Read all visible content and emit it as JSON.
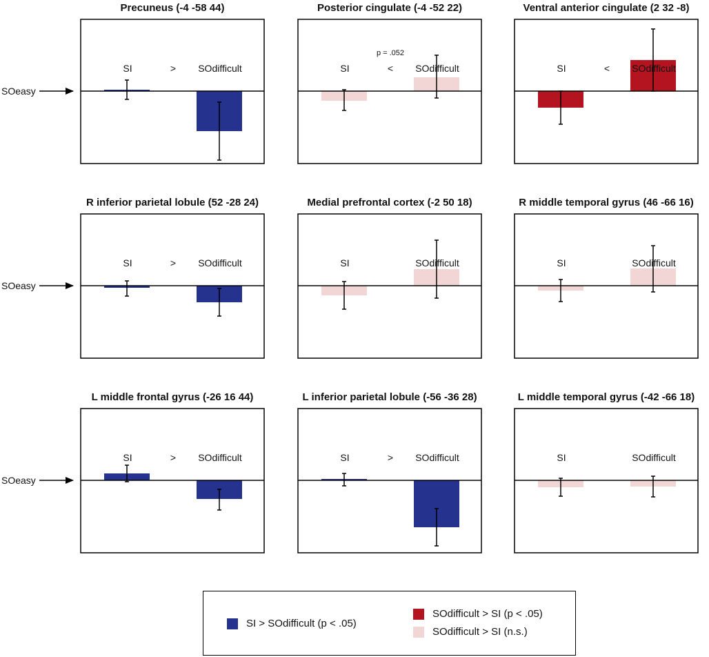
{
  "colors": {
    "sig_less": "#25338f",
    "sig_greater": "#b3141f",
    "ns": "#f2d6d6"
  },
  "row_label": "SOeasy",
  "legend": {
    "items": [
      {
        "label": "SI > SOdifficult (p < .05)",
        "color": "#25338f"
      },
      {
        "label": "SOdifficult > SI (p < .05)",
        "color": "#b3141f"
      },
      {
        "label": "SOdifficult > SI (n.s.)",
        "color": "#f2d6d6"
      }
    ]
  },
  "chart_data": [
    {
      "type": "bar",
      "title": "Precuneus (-4 -58 44)",
      "categories": [
        "SI",
        "SOdifficult"
      ],
      "comparison": ">",
      "annotation": "",
      "values": [
        0.02,
        -0.58
      ],
      "error_low": [
        -0.12,
        -1.0
      ],
      "error_high": [
        0.16,
        -0.16
      ],
      "colors": [
        "sig_less",
        "sig_less"
      ],
      "ylim": [
        -1.05,
        1.0
      ]
    },
    {
      "type": "bar",
      "title": "Posterior cingulate (-4 -52 22)",
      "categories": [
        "SI",
        "SOdifficult"
      ],
      "comparison": "<",
      "annotation": "p = .052",
      "values": [
        -0.14,
        0.2
      ],
      "error_low": [
        -0.28,
        -0.1
      ],
      "error_high": [
        0.02,
        0.52
      ],
      "colors": [
        "ns",
        "ns"
      ],
      "ylim": [
        -1.05,
        1.0
      ]
    },
    {
      "type": "bar",
      "title": "Ventral anterior cingulate (2 32 -8)",
      "categories": [
        "SI",
        "SOdifficult"
      ],
      "comparison": "<",
      "annotation": "",
      "values": [
        -0.24,
        0.45
      ],
      "error_low": [
        -0.48,
        0.0
      ],
      "error_high": [
        0.0,
        0.9
      ],
      "colors": [
        "sig_greater",
        "sig_greater"
      ],
      "ylim": [
        -1.05,
        1.0
      ]
    },
    {
      "type": "bar",
      "title": "R inferior parietal lobule (52 -28 24)",
      "categories": [
        "SI",
        "SOdifficult"
      ],
      "comparison": ">",
      "annotation": "",
      "values": [
        -0.03,
        -0.24
      ],
      "error_low": [
        -0.15,
        -0.44
      ],
      "error_high": [
        0.07,
        -0.04
      ],
      "colors": [
        "sig_less",
        "sig_less"
      ],
      "ylim": [
        -1.05,
        1.0
      ]
    },
    {
      "type": "bar",
      "title": "Medial prefrontal cortex (-2 50 18)",
      "categories": [
        "SI",
        "SOdifficult"
      ],
      "comparison": "",
      "annotation": "",
      "values": [
        -0.14,
        0.24
      ],
      "error_low": [
        -0.34,
        -0.18
      ],
      "error_high": [
        0.06,
        0.66
      ],
      "colors": [
        "ns",
        "ns"
      ],
      "ylim": [
        -1.05,
        1.0
      ]
    },
    {
      "type": "bar",
      "title": "R middle temporal gyrus (46 -66 16)",
      "categories": [
        "SI",
        "SOdifficult"
      ],
      "comparison": "",
      "annotation": "",
      "values": [
        -0.07,
        0.25
      ],
      "error_low": [
        -0.23,
        -0.09
      ],
      "error_high": [
        0.09,
        0.58
      ],
      "colors": [
        "ns",
        "ns"
      ],
      "ylim": [
        -1.05,
        1.0
      ]
    },
    {
      "type": "bar",
      "title": "L middle frontal gyrus (-26 16 44)",
      "categories": [
        "SI",
        "SOdifficult"
      ],
      "comparison": ">",
      "annotation": "",
      "values": [
        0.1,
        -0.27
      ],
      "error_low": [
        -0.02,
        -0.43
      ],
      "error_high": [
        0.22,
        -0.13
      ],
      "colors": [
        "sig_less",
        "sig_less"
      ],
      "ylim": [
        -1.05,
        1.0
      ]
    },
    {
      "type": "bar",
      "title": "L inferior parietal lobule (-56 -36 28)",
      "categories": [
        "SI",
        "SOdifficult"
      ],
      "comparison": ">",
      "annotation": "",
      "values": [
        0.01,
        -0.68
      ],
      "error_low": [
        -0.08,
        -0.95
      ],
      "error_high": [
        0.1,
        -0.41
      ],
      "colors": [
        "sig_less",
        "sig_less"
      ],
      "ylim": [
        -1.05,
        1.0
      ]
    },
    {
      "type": "bar",
      "title": "L middle temporal gyrus (-42 -66 18)",
      "categories": [
        "SI",
        "SOdifficult"
      ],
      "comparison": "",
      "annotation": "",
      "values": [
        -0.1,
        -0.09
      ],
      "error_low": [
        -0.23,
        -0.24
      ],
      "error_high": [
        0.03,
        0.06
      ],
      "colors": [
        "ns",
        "ns"
      ],
      "ylim": [
        -1.05,
        1.0
      ]
    }
  ]
}
